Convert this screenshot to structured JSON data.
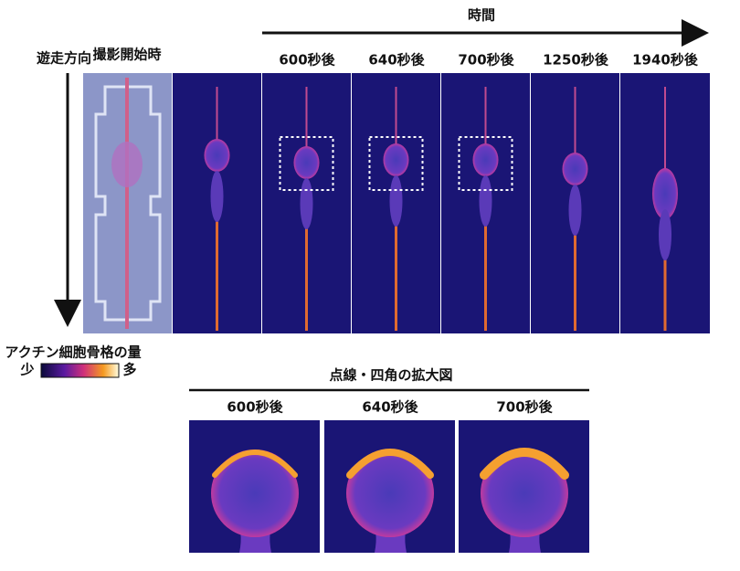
{
  "time_label": "時間",
  "direction_label": "遊走方向",
  "panels": [
    {
      "label": "撮影開始時"
    },
    {
      "label": "600秒後"
    },
    {
      "label": "640秒後"
    },
    {
      "label": "700秒後"
    },
    {
      "label": "1250秒後"
    },
    {
      "label": "1940秒後"
    }
  ],
  "colorbar": {
    "title": "アクチン細胞骨格の量",
    "low": "少",
    "high": "多"
  },
  "zoom": {
    "title": "点線・四角の拡大図",
    "panels": [
      {
        "label": "600秒後"
      },
      {
        "label": "640秒後"
      },
      {
        "label": "700秒後"
      }
    ]
  }
}
